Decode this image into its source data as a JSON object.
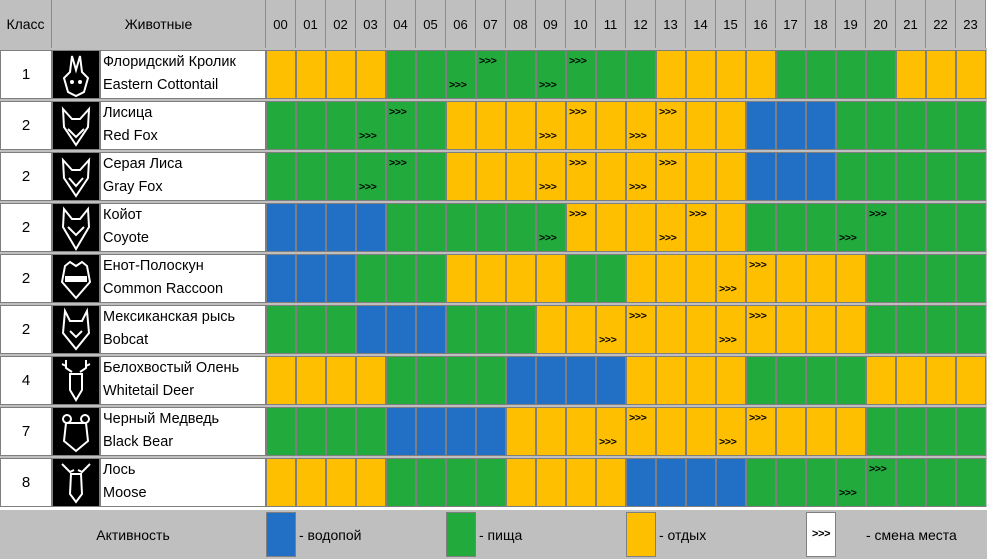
{
  "header": {
    "class_label": "Класс",
    "animals_label": "Животные",
    "hours": [
      "00",
      "01",
      "02",
      "03",
      "04",
      "05",
      "06",
      "07",
      "08",
      "09",
      "10",
      "11",
      "12",
      "13",
      "14",
      "15",
      "16",
      "17",
      "18",
      "19",
      "20",
      "21",
      "22",
      "23"
    ]
  },
  "colors": {
    "B": "#2170c6",
    "G": "#22ab3c",
    "Y": "#fdbf00",
    "header": "#bfbfbf",
    "icon_bg": "#000000"
  },
  "arrow_symbol": ">>>",
  "rows": [
    {
      "klass": "1",
      "ru": "Флоридский Кролик",
      "en": "Eastern Cottontail",
      "icon": "rabbit-icon",
      "acts": "YYYYGGGGGGGGGYYYYGGGGYYY",
      "arrows": [
        [
          6,
          "b"
        ],
        [
          7,
          "t"
        ],
        [
          9,
          "b"
        ],
        [
          10,
          "t"
        ]
      ]
    },
    {
      "klass": "2",
      "ru": "Лисица",
      "en": "Red Fox",
      "icon": "fox-icon",
      "acts": "GGGGGGYYYYYYYYYYBBBGGGGG",
      "arrows": [
        [
          3,
          "b"
        ],
        [
          4,
          "t"
        ],
        [
          9,
          "b"
        ],
        [
          10,
          "t"
        ],
        [
          12,
          "b"
        ],
        [
          13,
          "t"
        ]
      ]
    },
    {
      "klass": "2",
      "ru": "Серая Лиса",
      "en": "Gray Fox",
      "icon": "gray-fox-icon",
      "acts": "GGGGGGYYYYYYYYYYBBBGGGGG",
      "arrows": [
        [
          3,
          "b"
        ],
        [
          4,
          "t"
        ],
        [
          9,
          "b"
        ],
        [
          10,
          "t"
        ],
        [
          12,
          "b"
        ],
        [
          13,
          "t"
        ]
      ]
    },
    {
      "klass": "2",
      "ru": "Койот",
      "en": "Coyote",
      "icon": "coyote-icon",
      "acts": "BBBBGGGGGGYYYYYYGGGGGGGG",
      "arrows": [
        [
          9,
          "b"
        ],
        [
          10,
          "t"
        ],
        [
          13,
          "b"
        ],
        [
          14,
          "t"
        ],
        [
          19,
          "b"
        ],
        [
          20,
          "t"
        ]
      ]
    },
    {
      "klass": "2",
      "ru": "Енот-Полоскун",
      "en": "Common Raccoon",
      "icon": "raccoon-icon",
      "acts": "BBBGGGYYYYGGYYYYYYYYGGGG",
      "arrows": [
        [
          15,
          "b"
        ],
        [
          16,
          "t"
        ]
      ]
    },
    {
      "klass": "2",
      "ru": "Мексиканская рысь",
      "en": "Bobcat",
      "icon": "bobcat-icon",
      "acts": "GGGBBBGGGYYYYYYYYYYYGGGG",
      "arrows": [
        [
          11,
          "b"
        ],
        [
          12,
          "t"
        ],
        [
          15,
          "b"
        ],
        [
          16,
          "t"
        ]
      ]
    },
    {
      "klass": "4",
      "ru": "Белохвостый Олень",
      "en": "Whitetail Deer",
      "icon": "deer-icon",
      "acts": "YYYYGGGGBBBBYYYYGGGGYYYY",
      "arrows": []
    },
    {
      "klass": "7",
      "ru": "Черный Медведь",
      "en": "Black Bear",
      "icon": "bear-icon",
      "acts": "GGGGBBBBYYYYYYYYYYYYGGGG",
      "arrows": [
        [
          11,
          "b"
        ],
        [
          12,
          "t"
        ],
        [
          15,
          "b"
        ],
        [
          16,
          "t"
        ]
      ]
    },
    {
      "klass": "8",
      "ru": "Лось",
      "en": "Moose",
      "icon": "moose-icon",
      "acts": "YYYYGGGGYYYYBBBBGGGGGGGG",
      "arrows": [
        [
          19,
          "b"
        ],
        [
          20,
          "t"
        ]
      ]
    }
  ],
  "legend": {
    "title": "Активность",
    "water": "- водопой",
    "food": "- пища",
    "rest": "- отдых",
    "move": "- смена места"
  }
}
